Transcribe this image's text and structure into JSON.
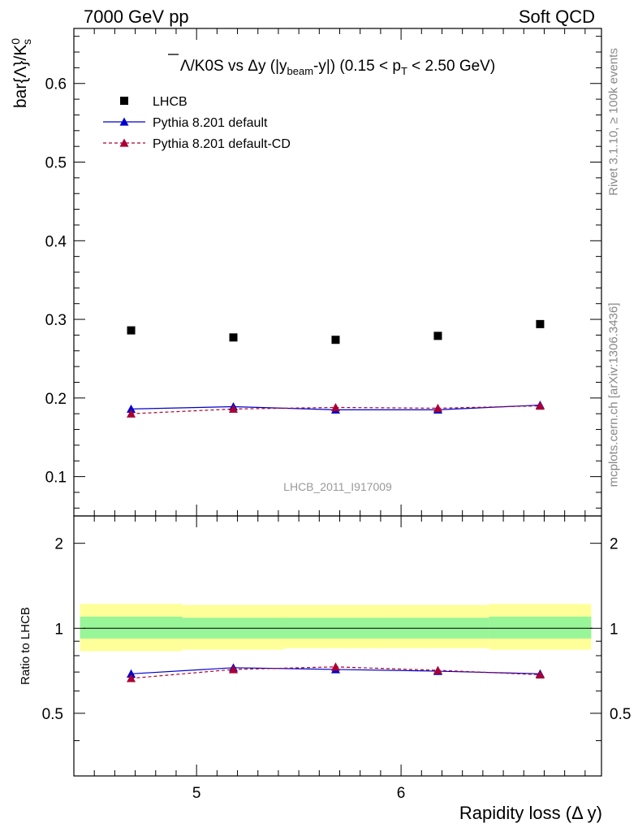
{
  "header": {
    "left": "7000 GeV pp",
    "right": "Soft QCD"
  },
  "side": {
    "rivet": "Rivet 3.1.10, ≥ 100k events",
    "mcplots": "mcplots.cern.ch [arXiv:1306.3436]"
  },
  "chart_data": [
    {
      "type": "scatter",
      "title": "Λ/K0S vs Δy (|y_beam-y|) (0.15 < p_T < 2.50 GeV)",
      "title_parts": {
        "main": "Λ/K0S vs Δy (|y",
        "sub1": "beam",
        "mid": "-y|) (0.15 < p",
        "sub2": "T",
        "end": " < 2.50 GeV)"
      },
      "ylabel": "bar{Λ}/K0s",
      "ylabel_parts": {
        "main": "bar{Λ}/K",
        "sup": "0",
        "sub": "s"
      },
      "watermark": "LHCB_2011_I917009",
      "xlim": [
        4.4,
        6.98
      ],
      "ylim": [
        0.05,
        0.67
      ],
      "yticks": [
        "0.1",
        "0.2",
        "0.3",
        "0.4",
        "0.5",
        "0.6"
      ],
      "ytick_values": [
        0.1,
        0.2,
        0.3,
        0.4,
        0.5,
        0.6
      ],
      "x": [
        4.68,
        5.18,
        5.68,
        6.18,
        6.68
      ],
      "series": [
        {
          "name": "LHCB",
          "values": [
            0.286,
            0.277,
            0.274,
            0.279,
            0.294
          ],
          "color": "#000000",
          "marker": "square"
        },
        {
          "name": "Pythia 8.201 default",
          "values": [
            0.186,
            0.189,
            0.185,
            0.185,
            0.191
          ],
          "color": "#0000cc",
          "marker": "triangle",
          "line": "solid"
        },
        {
          "name": "Pythia 8.201 default-CD",
          "values": [
            0.18,
            0.186,
            0.188,
            0.187,
            0.19
          ],
          "color": "#aa0033",
          "marker": "triangle",
          "line": "dashed"
        }
      ],
      "legend_position": "top-left"
    },
    {
      "type": "line",
      "ylabel": "Ratio to LHCB",
      "xlabel": "Rapidity loss (Δ y)",
      "xlim": [
        4.4,
        6.98
      ],
      "ylim": [
        0.3,
        2.5
      ],
      "log_y": true,
      "xticks": [
        "5",
        "6"
      ],
      "xtick_values": [
        5,
        6
      ],
      "yticks": [
        "0.5",
        "1",
        "2"
      ],
      "ytick_values": [
        0.5,
        1,
        2
      ],
      "x": [
        4.68,
        5.18,
        5.68,
        6.18,
        6.68
      ],
      "bin_edges": [
        4.43,
        4.93,
        5.43,
        5.93,
        6.43,
        6.93
      ],
      "band_stat": [
        [
          0.92,
          1.1
        ],
        [
          0.92,
          1.09
        ],
        [
          0.92,
          1.09
        ],
        [
          0.92,
          1.09
        ],
        [
          0.92,
          1.1
        ]
      ],
      "band_total": [
        [
          0.83,
          1.22
        ],
        [
          0.84,
          1.21
        ],
        [
          0.85,
          1.21
        ],
        [
          0.85,
          1.21
        ],
        [
          0.84,
          1.22
        ]
      ],
      "series": [
        {
          "name": "Pythia 8.201 default",
          "values": [
            0.69,
            0.725,
            0.715,
            0.705,
            0.69
          ],
          "color": "#0000cc",
          "line": "solid"
        },
        {
          "name": "Pythia 8.201 default-CD",
          "values": [
            0.665,
            0.715,
            0.73,
            0.71,
            0.685
          ],
          "color": "#aa0033",
          "line": "dashed"
        }
      ],
      "colors": {
        "band_stat": "#98f598",
        "band_total": "#ffff99"
      }
    }
  ]
}
